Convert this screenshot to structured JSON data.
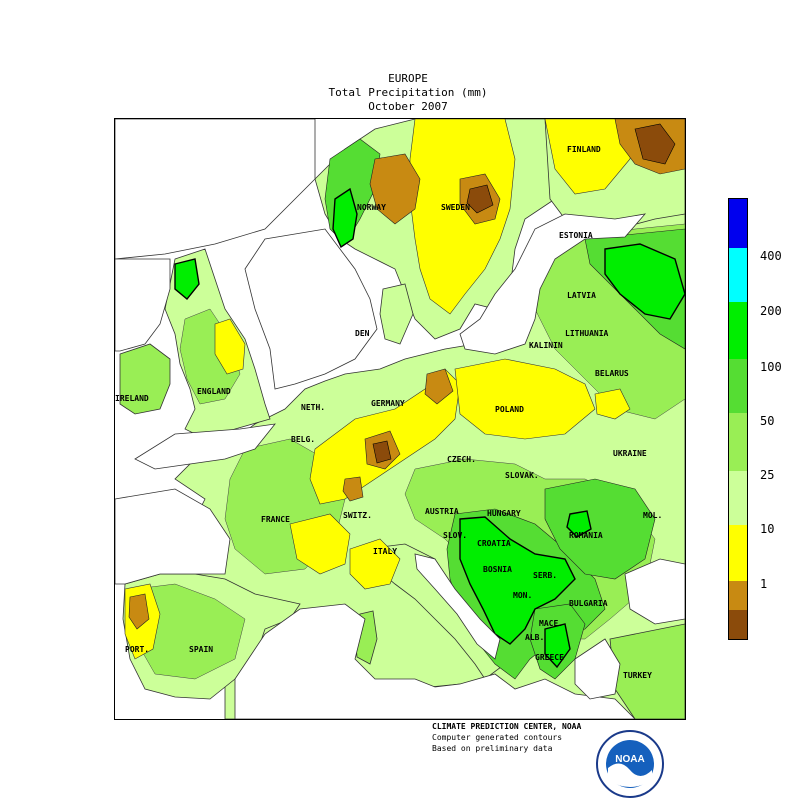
{
  "title": {
    "line1": "EUROPE",
    "line2": "Total Precipitation (mm)",
    "line3": "October 2007"
  },
  "colors": {
    "brown": "#8b4b0b",
    "tan": "#c88a12",
    "yellow": "#ffff00",
    "pale_green": "#ccff99",
    "light_green": "#99ee55",
    "green": "#55dd33",
    "bright_green": "#00ee00",
    "cyan": "#00ffff",
    "blue": "#0000ee",
    "water": "#ffffff"
  },
  "legend": {
    "ticks": [
      "400",
      "200",
      "100",
      "50",
      "25",
      "10",
      "1"
    ],
    "bins": [
      {
        "range": "> 400",
        "color": "#0000ee"
      },
      {
        "range": "200 - 400",
        "color": "#00ffff"
      },
      {
        "range": "100 - 200",
        "color": "#00ee00"
      },
      {
        "range": "50 - 100",
        "color": "#55dd33"
      },
      {
        "range": "25 - 50",
        "color": "#99ee55"
      },
      {
        "range": "10 - 25",
        "color": "#ccff99"
      },
      {
        "range": "1 - 10",
        "color": "#ffff00"
      },
      {
        "range": "< 1",
        "color": "#c88a12"
      },
      {
        "range": "0",
        "color": "#8b4b0b"
      }
    ]
  },
  "labels": {
    "finland": "FINLAND",
    "norway": "NORWAY",
    "sweden": "SWEDEN",
    "estonia": "ESTONIA",
    "latvia": "LATVIA",
    "lithuania": "LITHUANIA",
    "kalinin": "KALININ",
    "belarus": "BELARUS",
    "den": "DEN",
    "ireland": "IRELAND",
    "england": "ENGLAND",
    "neth": "NETH.",
    "belg": "BELG.",
    "germany": "GERMANY",
    "poland": "POLAND",
    "ukraine": "UKRAINE",
    "czech": "CZECH.",
    "slovak": "SLOVAK.",
    "hungary": "HUNGARY",
    "austria": "AUSTRIA",
    "switz": "SWITZ.",
    "france": "FRANCE",
    "italy": "ITALY",
    "slov": "SLOV.",
    "croatia": "CROATIA",
    "bosnia": "BOSNIA",
    "serb": "SERB.",
    "romania": "ROMANIA",
    "mol": "MOL.",
    "mon": "MON.",
    "bulgaria": "BULGARIA",
    "mace": "MACE.",
    "alb": "ALB.",
    "greece": "GREECE",
    "turkey": "TURKEY",
    "port": "PORT.",
    "spain": "SPAIN"
  },
  "credits": {
    "line1": "CLIMATE PREDICTION CENTER, NOAA",
    "line2": "Computer generated contours",
    "line3": "Based on preliminary data"
  },
  "logo": {
    "text": "NOAA"
  }
}
